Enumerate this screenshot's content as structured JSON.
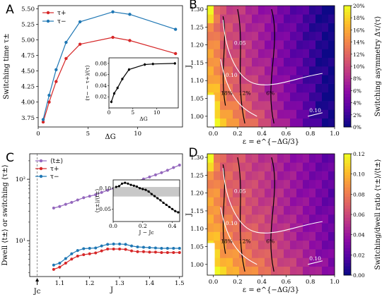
{
  "panels": {
    "A": {
      "letter": "A"
    },
    "B": {
      "letter": "B"
    },
    "C": {
      "letter": "C"
    },
    "D": {
      "letter": "D"
    }
  },
  "chart_data": [
    {
      "id": "A",
      "type": "line",
      "xlabel": "ΔG",
      "ylabel": "Switching time τ±",
      "xlim": [
        0,
        14.5
      ],
      "ylim": [
        3.6,
        5.55
      ],
      "xticks": [
        0,
        5,
        10
      ],
      "yticks": [
        3.75,
        4.0,
        4.25,
        4.5,
        4.75,
        5.0,
        5.25,
        5.5
      ],
      "ytick_labels": [
        "3.75",
        "4.00",
        "4.25",
        "4.50",
        "4.75",
        "5.00",
        "5.25",
        "5.50"
      ],
      "legend_position": "top-left",
      "x": [
        0.5,
        1.1,
        1.8,
        2.8,
        4.2,
        7.5,
        9.2,
        13.8
      ],
      "series": [
        {
          "name": "τ+",
          "color": "#d62728",
          "values": [
            3.68,
            4.0,
            4.33,
            4.7,
            4.93,
            5.04,
            4.99,
            4.78
          ]
        },
        {
          "name": "τ−",
          "color": "#1f77b4",
          "values": [
            3.72,
            4.11,
            4.52,
            4.96,
            5.29,
            5.45,
            5.41,
            5.17
          ]
        }
      ],
      "inset": {
        "xlabel": "ΔG",
        "ylabel": "(τ− − τ+)/⟨τ⟩",
        "xlim": [
          0,
          14.5
        ],
        "ylim": [
          0.0,
          0.09
        ],
        "xticks": [
          0,
          5,
          10
        ],
        "yticks": [
          0.02,
          0.04,
          0.06,
          0.08
        ],
        "ytick_labels": [
          "0.02",
          "0.04",
          "0.06",
          "0.08"
        ],
        "x": [
          0.5,
          1.1,
          1.8,
          2.8,
          4.2,
          7.5,
          9.2,
          13.8
        ],
        "values": [
          0.011,
          0.026,
          0.036,
          0.052,
          0.069,
          0.078,
          0.079,
          0.08
        ]
      }
    },
    {
      "id": "B",
      "type": "heatmap",
      "xlabel": "ε = e^{−ΔG/3}",
      "ylabel": "J",
      "xlim": [
        -0.05,
        1.0
      ],
      "ylim": [
        0.97,
        1.31
      ],
      "xticks": [
        0.0,
        0.2,
        0.4,
        0.6,
        0.8,
        1.0
      ],
      "xtick_labels": [
        "0.0",
        "0.2",
        "0.4",
        "0.6",
        "0.8",
        "1.0"
      ],
      "yticks": [
        1.0,
        1.05,
        1.1,
        1.15,
        1.2,
        1.25,
        1.3
      ],
      "ytick_labels": [
        "1.00",
        "1.05",
        "1.10",
        "1.15",
        "1.20",
        "1.25",
        "1.30"
      ],
      "colorbar_label": "Switching asymmetry Δτ/⟨τ⟩",
      "colorbar_ticks": [
        "0%",
        "2%",
        "4%",
        "6%",
        "8%",
        "10%",
        "12%",
        "14%",
        "16%",
        "18%",
        "20%"
      ],
      "contour_labels": [
        "0.05",
        "0.10",
        "0.10",
        "18%",
        "12%",
        "6%"
      ]
    },
    {
      "id": "C",
      "type": "line",
      "xlabel": "J",
      "ylabel": "Dwell ⟨t±⟩ or switching ⟨τ±⟩",
      "xlim": [
        1.0,
        1.51
      ],
      "yscale": "log",
      "ylim": [
        2.6,
        260
      ],
      "xticks": [
        1.1,
        1.2,
        1.3,
        1.4,
        1.5
      ],
      "xtick_labels": [
        "1.1",
        "1.2",
        "1.3",
        "1.4",
        "1.5"
      ],
      "ytick_labels": [
        "10¹",
        "10²"
      ],
      "vline_label": "Jc",
      "legend_position": "top-left",
      "x": [
        1.08,
        1.1,
        1.12,
        1.14,
        1.16,
        1.18,
        1.2,
        1.22,
        1.24,
        1.26,
        1.28,
        1.3,
        1.32,
        1.34,
        1.36,
        1.38,
        1.4,
        1.42,
        1.44,
        1.46,
        1.48,
        1.5
      ],
      "series": [
        {
          "name": "⟨t±⟩",
          "color": "#9467bd",
          "values": [
            34,
            36,
            39,
            42,
            46,
            50,
            53,
            56,
            61,
            66,
            71,
            76,
            81,
            87,
            94,
            101,
            109,
            118,
            128,
            140,
            155,
            170
          ]
        },
        {
          "name": "τ+",
          "color": "#d62728",
          "values": [
            3.4,
            3.7,
            4.3,
            5.0,
            5.6,
            5.9,
            6.1,
            6.3,
            6.8,
            7.3,
            7.3,
            7.3,
            7.2,
            6.8,
            6.6,
            6.6,
            6.5,
            6.5,
            6.4,
            6.4,
            6.4,
            6.4
          ]
        },
        {
          "name": "τ−",
          "color": "#1f77b4",
          "values": [
            4.0,
            4.3,
            5.1,
            6.1,
            6.9,
            7.4,
            7.5,
            7.6,
            8.2,
            8.7,
            8.8,
            8.8,
            8.7,
            8.2,
            7.9,
            7.8,
            7.7,
            7.6,
            7.5,
            7.5,
            7.5,
            7.5
          ]
        }
      ],
      "inset": {
        "xlabel": "J − Jc",
        "ylabel": "⟨τ±⟩/⟨t±⟩",
        "xlim": [
          0.0,
          0.45
        ],
        "ylim": [
          0.02,
          0.12
        ],
        "xticks": [
          0.0,
          0.2,
          0.4
        ],
        "xtick_labels": [
          "0.0",
          "0.2",
          "0.4"
        ],
        "yticks": [
          0.05,
          0.1
        ],
        "ytick_labels": [
          "0.05",
          "0.10"
        ],
        "shaded_band": [
          0.08,
          0.103
        ],
        "x": [
          0.02,
          0.04,
          0.06,
          0.08,
          0.1,
          0.12,
          0.14,
          0.16,
          0.18,
          0.2,
          0.22,
          0.24,
          0.26,
          0.28,
          0.3,
          0.32,
          0.34,
          0.36,
          0.38,
          0.4,
          0.42,
          0.44
        ],
        "values": [
          0.103,
          0.105,
          0.111,
          0.113,
          0.111,
          0.108,
          0.106,
          0.104,
          0.1,
          0.098,
          0.096,
          0.092,
          0.086,
          0.081,
          0.076,
          0.071,
          0.065,
          0.06,
          0.055,
          0.05,
          0.045,
          0.042
        ]
      }
    },
    {
      "id": "D",
      "type": "heatmap",
      "xlabel": "ε = e^{−ΔG/3}",
      "ylabel": "J",
      "xlim": [
        -0.05,
        1.0
      ],
      "ylim": [
        0.97,
        1.31
      ],
      "xticks": [
        0.0,
        0.2,
        0.4,
        0.6,
        0.8,
        1.0
      ],
      "xtick_labels": [
        "0.0",
        "0.2",
        "0.4",
        "0.6",
        "0.8",
        "1.0"
      ],
      "yticks": [
        1.0,
        1.05,
        1.1,
        1.15,
        1.2,
        1.25,
        1.3
      ],
      "ytick_labels": [
        "1.00",
        "1.05",
        "1.10",
        "1.15",
        "1.20",
        "1.25",
        "1.30"
      ],
      "colorbar_label": "Switching/dwell ratio ⟨τ±⟩/⟨t±⟩",
      "colorbar_ticks": [
        "0.00",
        "0.02",
        "0.04",
        "0.06",
        "0.08",
        "0.10",
        "0.12"
      ],
      "contour_labels": [
        "0.05",
        "0.10",
        "0.10",
        "18%",
        "12%",
        "6%"
      ]
    }
  ]
}
